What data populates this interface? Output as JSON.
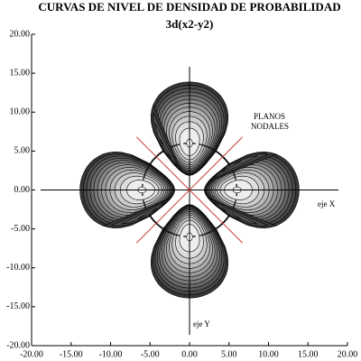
{
  "chart_data": {
    "type": "contour",
    "title": "CURVAS DE NIVEL DE DENSIDAD DE PROBABILIDAD",
    "subtitle": "3d(x2-y2)",
    "annotations": [
      "PLANOS",
      "NODALES",
      "eje X",
      "eje Y"
    ],
    "xlim": [
      -20,
      20
    ],
    "ylim": [
      -20,
      20
    ],
    "xticks": [
      {
        "value": -20,
        "label": "-20.00"
      },
      {
        "value": -15,
        "label": "-15.00"
      },
      {
        "value": -10,
        "label": "-10.00"
      },
      {
        "value": -5,
        "label": "-5.00"
      },
      {
        "value": 0,
        "label": "0.00"
      },
      {
        "value": 5,
        "label": "5.00"
      },
      {
        "value": 10,
        "label": "10.00"
      },
      {
        "value": 15,
        "label": "15.00"
      },
      {
        "value": 20,
        "label": "20.00"
      }
    ],
    "yticks": [
      {
        "value": -20,
        "label": "-20.00"
      },
      {
        "value": -15,
        "label": "-15.00"
      },
      {
        "value": -10,
        "label": "-10.00"
      },
      {
        "value": -5,
        "label": "-5.00"
      },
      {
        "value": 0,
        "label": "0.00"
      },
      {
        "value": 5,
        "label": "5.00"
      },
      {
        "value": 10,
        "label": "10.00"
      },
      {
        "value": 15,
        "label": "15.00"
      },
      {
        "value": 20,
        "label": "20.00"
      }
    ],
    "nodal_line_color": "#d04040"
  }
}
